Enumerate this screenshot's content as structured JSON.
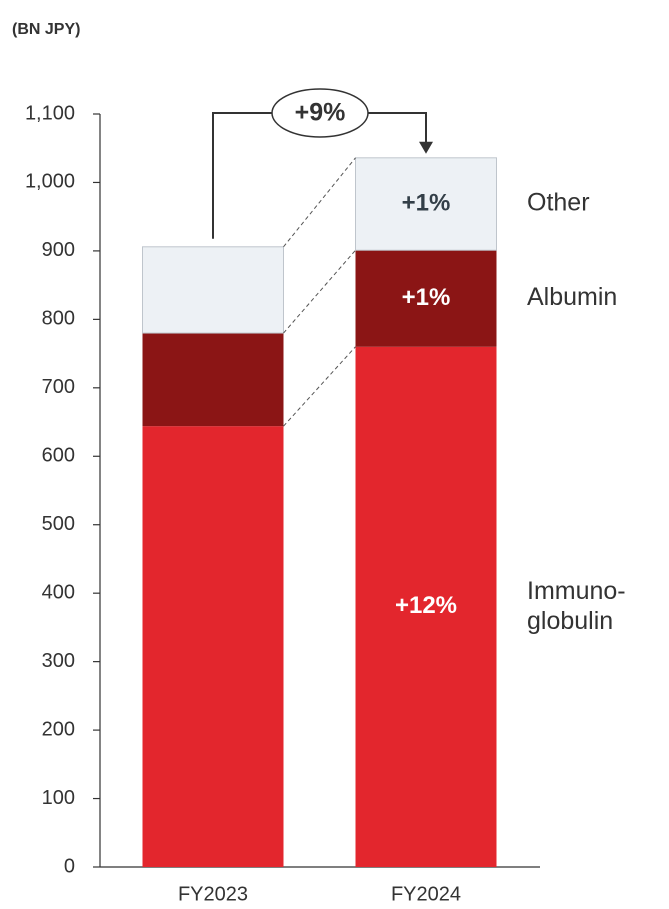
{
  "chart_data": {
    "type": "stacked_bar",
    "unit_label": "(BN JPY)",
    "categories": [
      "FY2023",
      "FY2024"
    ],
    "series": [
      {
        "name": "Immuno-globulin",
        "color": "#e3262d",
        "label_color": "#ffffff",
        "values": [
          644,
          760
        ],
        "growth_labels": [
          null,
          "+12%"
        ]
      },
      {
        "name": "Albumin",
        "color": "#8b1515",
        "label_color": "#ffffff",
        "values": [
          136,
          141
        ],
        "growth_labels": [
          null,
          "+1%"
        ]
      },
      {
        "name": "Other",
        "color": "#edf1f5",
        "label_color": "#333f48",
        "values": [
          126,
          135
        ],
        "growth_labels": [
          null,
          "+1%"
        ]
      }
    ],
    "total_growth": "+9%",
    "ylim": [
      0,
      1100
    ],
    "yticks": [
      0,
      100,
      200,
      300,
      400,
      500,
      600,
      700,
      800,
      900,
      {
        "value": 1000,
        "label": "1,000"
      },
      {
        "value": 1100,
        "label": "1,100"
      }
    ]
  }
}
